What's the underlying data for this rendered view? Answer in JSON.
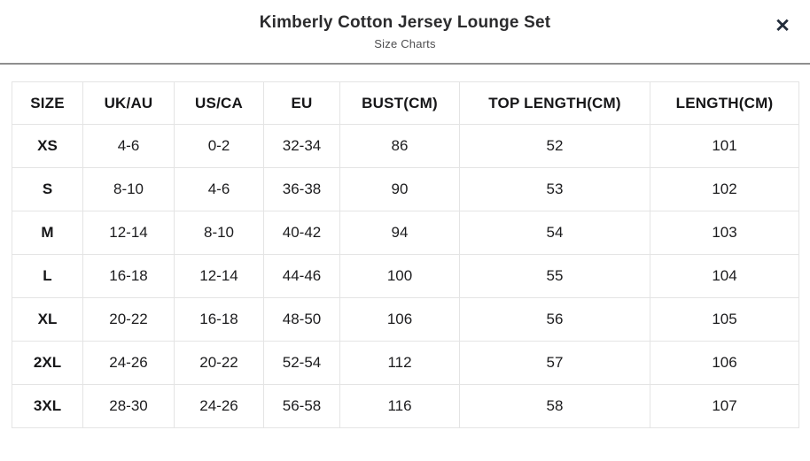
{
  "modal": {
    "title": "Kimberly Cotton Jersey Lounge Set",
    "subtitle": "Size Charts"
  },
  "icons": {
    "close": "✕"
  },
  "colors": {
    "text_primary": "#1c1c1e",
    "divider": "#8f8f8f",
    "table_border": "#e4e4e4",
    "background": "#ffffff"
  },
  "table": {
    "headers": [
      "SIZE",
      "UK/AU",
      "US/CA",
      "EU",
      "BUST(CM)",
      "TOP LENGTH(CM)",
      "LENGTH(CM)"
    ],
    "rows": [
      [
        "XS",
        "4-6",
        "0-2",
        "32-34",
        "86",
        "52",
        "101"
      ],
      [
        "S",
        "8-10",
        "4-6",
        "36-38",
        "90",
        "53",
        "102"
      ],
      [
        "M",
        "12-14",
        "8-10",
        "40-42",
        "94",
        "54",
        "103"
      ],
      [
        "L",
        "16-18",
        "12-14",
        "44-46",
        "100",
        "55",
        "104"
      ],
      [
        "XL",
        "20-22",
        "16-18",
        "48-50",
        "106",
        "56",
        "105"
      ],
      [
        "2XL",
        "24-26",
        "20-22",
        "52-54",
        "112",
        "57",
        "106"
      ],
      [
        "3XL",
        "28-30",
        "24-26",
        "56-58",
        "116",
        "58",
        "107"
      ]
    ]
  }
}
